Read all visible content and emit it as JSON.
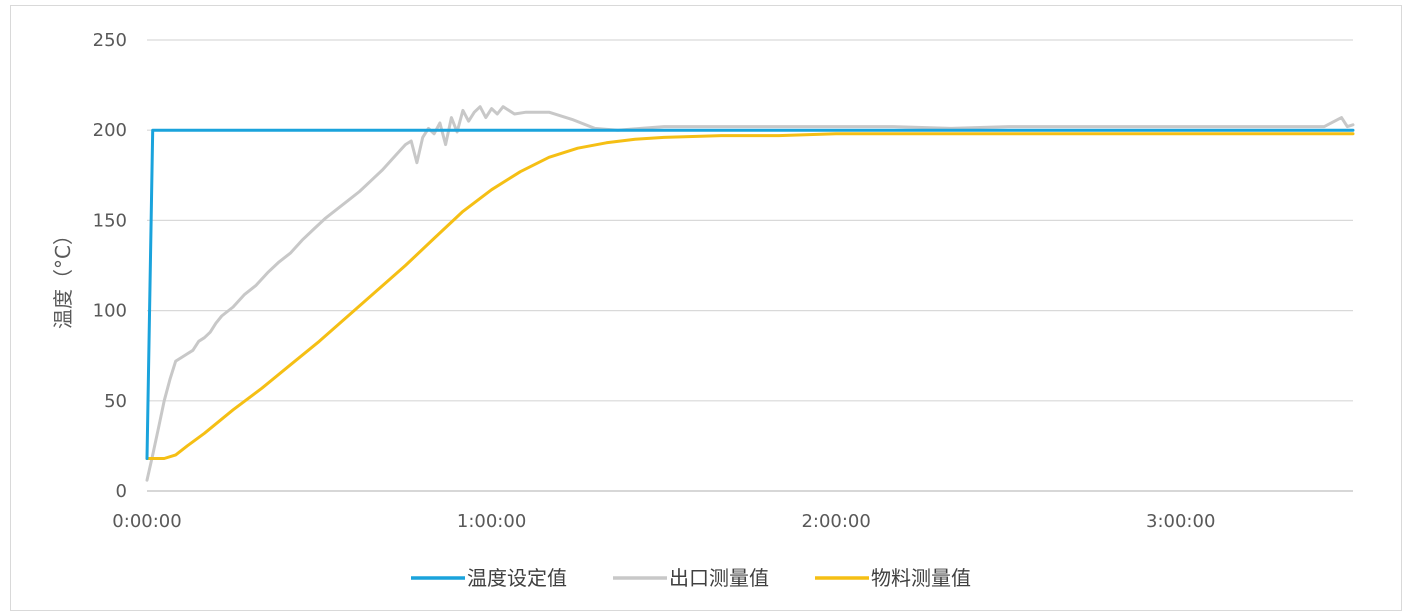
{
  "chart_data": {
    "type": "line",
    "ylabel": "温度（°C）",
    "ylim": [
      0,
      250
    ],
    "yticks": [
      0,
      50,
      100,
      150,
      200,
      250
    ],
    "x_unit": "minutes",
    "xlim": [
      0,
      210
    ],
    "xticks": [
      {
        "value": 0,
        "label": "0:00:00"
      },
      {
        "value": 60,
        "label": "1:00:00"
      },
      {
        "value": 120,
        "label": "2:00:00"
      },
      {
        "value": 180,
        "label": "3:00:00"
      }
    ],
    "grid": true,
    "legend_position": "bottom",
    "series": [
      {
        "name": "温度设定值",
        "color": "#1aa3dc",
        "points": [
          [
            0,
            18
          ],
          [
            1,
            200
          ],
          [
            210,
            200
          ]
        ]
      },
      {
        "name": "出口测量值",
        "color": "#c8c8c8",
        "points": [
          [
            0,
            6
          ],
          [
            1,
            20
          ],
          [
            2,
            35
          ],
          [
            3,
            50
          ],
          [
            4,
            62
          ],
          [
            5,
            72
          ],
          [
            6,
            74
          ],
          [
            7,
            76
          ],
          [
            8,
            78
          ],
          [
            9,
            83
          ],
          [
            10,
            85
          ],
          [
            11,
            88
          ],
          [
            12,
            93
          ],
          [
            13,
            97
          ],
          [
            15,
            102
          ],
          [
            17,
            109
          ],
          [
            19,
            114
          ],
          [
            21,
            121
          ],
          [
            23,
            127
          ],
          [
            25,
            132
          ],
          [
            27,
            139
          ],
          [
            29,
            145
          ],
          [
            31,
            151
          ],
          [
            33,
            156
          ],
          [
            35,
            161
          ],
          [
            37,
            166
          ],
          [
            39,
            172
          ],
          [
            41,
            178
          ],
          [
            43,
            185
          ],
          [
            45,
            192
          ],
          [
            46,
            194
          ],
          [
            47,
            182
          ],
          [
            48,
            196
          ],
          [
            49,
            201
          ],
          [
            50,
            198
          ],
          [
            51,
            204
          ],
          [
            52,
            192
          ],
          [
            53,
            207
          ],
          [
            54,
            199
          ],
          [
            55,
            211
          ],
          [
            56,
            205
          ],
          [
            57,
            210
          ],
          [
            58,
            213
          ],
          [
            59,
            207
          ],
          [
            60,
            212
          ],
          [
            61,
            209
          ],
          [
            62,
            213
          ],
          [
            64,
            209
          ],
          [
            66,
            210
          ],
          [
            70,
            210
          ],
          [
            74,
            206
          ],
          [
            78,
            201
          ],
          [
            82,
            200
          ],
          [
            86,
            201
          ],
          [
            90,
            202
          ],
          [
            95,
            202
          ],
          [
            100,
            202
          ],
          [
            110,
            202
          ],
          [
            120,
            202
          ],
          [
            130,
            202
          ],
          [
            140,
            201
          ],
          [
            150,
            202
          ],
          [
            160,
            202
          ],
          [
            170,
            202
          ],
          [
            180,
            202
          ],
          [
            190,
            202
          ],
          [
            200,
            202
          ],
          [
            205,
            202
          ],
          [
            208,
            207
          ],
          [
            209,
            202
          ],
          [
            210,
            203
          ]
        ]
      },
      {
        "name": "物料测量值",
        "color": "#f5bf14",
        "points": [
          [
            0,
            18
          ],
          [
            3,
            18
          ],
          [
            5,
            20
          ],
          [
            7,
            25
          ],
          [
            10,
            32
          ],
          [
            15,
            45
          ],
          [
            20,
            57
          ],
          [
            25,
            70
          ],
          [
            30,
            83
          ],
          [
            35,
            97
          ],
          [
            40,
            111
          ],
          [
            45,
            125
          ],
          [
            50,
            140
          ],
          [
            55,
            155
          ],
          [
            60,
            167
          ],
          [
            65,
            177
          ],
          [
            70,
            185
          ],
          [
            75,
            190
          ],
          [
            80,
            193
          ],
          [
            85,
            195
          ],
          [
            90,
            196
          ],
          [
            100,
            197
          ],
          [
            110,
            197
          ],
          [
            120,
            198
          ],
          [
            140,
            198
          ],
          [
            160,
            198
          ],
          [
            180,
            198
          ],
          [
            210,
            198
          ]
        ]
      }
    ]
  }
}
